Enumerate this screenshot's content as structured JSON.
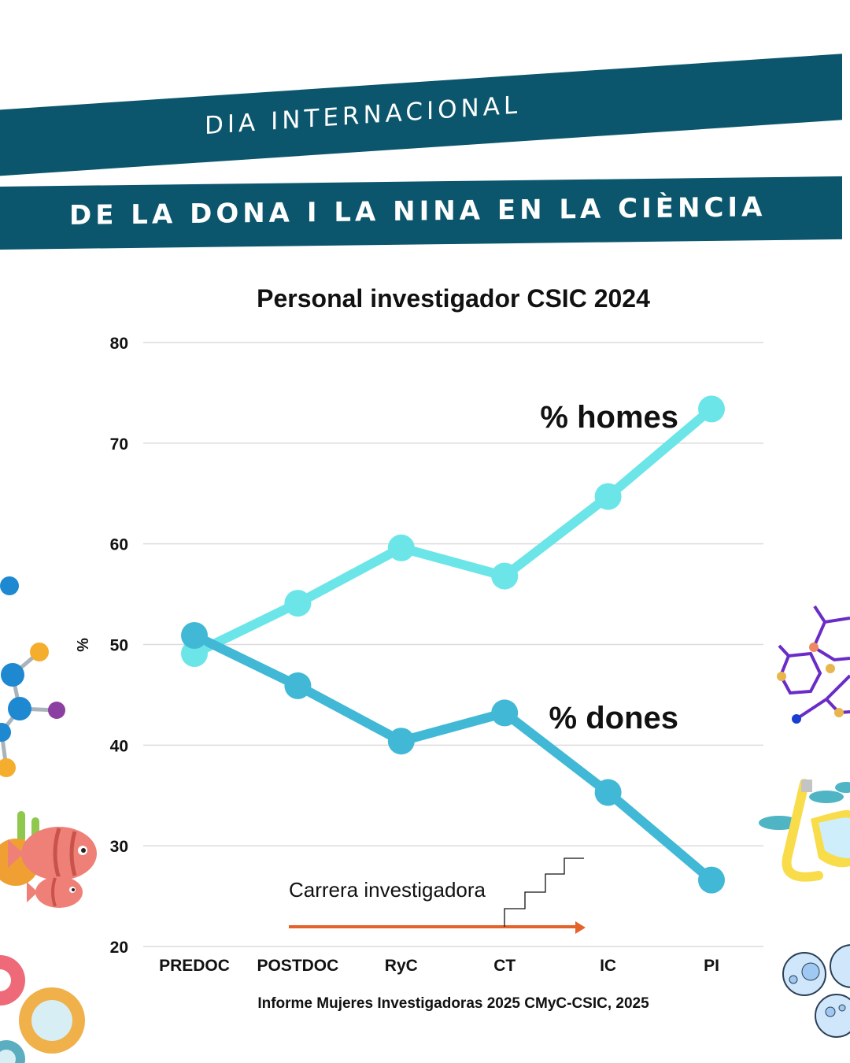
{
  "header": {
    "line1": "DIA INTERNACIONAL",
    "line2": "DE LA DONA I LA NINA EN LA CIÈNCIA",
    "banner_color": "#0b566c"
  },
  "chart_data": {
    "type": "line",
    "title": "Personal investigador CSIC 2024",
    "xlabel": "",
    "ylabel": "%",
    "categories": [
      "PREDOC",
      "POSTDOC",
      "RyC",
      "CT",
      "IC",
      "PI"
    ],
    "ylim": [
      20,
      80
    ],
    "yticks": [
      20,
      30,
      40,
      50,
      60,
      70,
      80
    ],
    "grid": true,
    "series": [
      {
        "name": "% homes",
        "color": "#6ce5e8",
        "values": [
          49.1,
          54.1,
          59.6,
          56.8,
          64.7,
          73.4
        ]
      },
      {
        "name": "% dones",
        "color": "#41b8d5",
        "values": [
          50.9,
          45.9,
          40.4,
          43.2,
          35.3,
          26.6
        ]
      }
    ],
    "annotation": {
      "text": "Carrera investigadora",
      "arrow_color": "#e4632a"
    },
    "source": "Informe Mujeres Investigadoras 2025 CMyC-CSIC, 2025"
  }
}
